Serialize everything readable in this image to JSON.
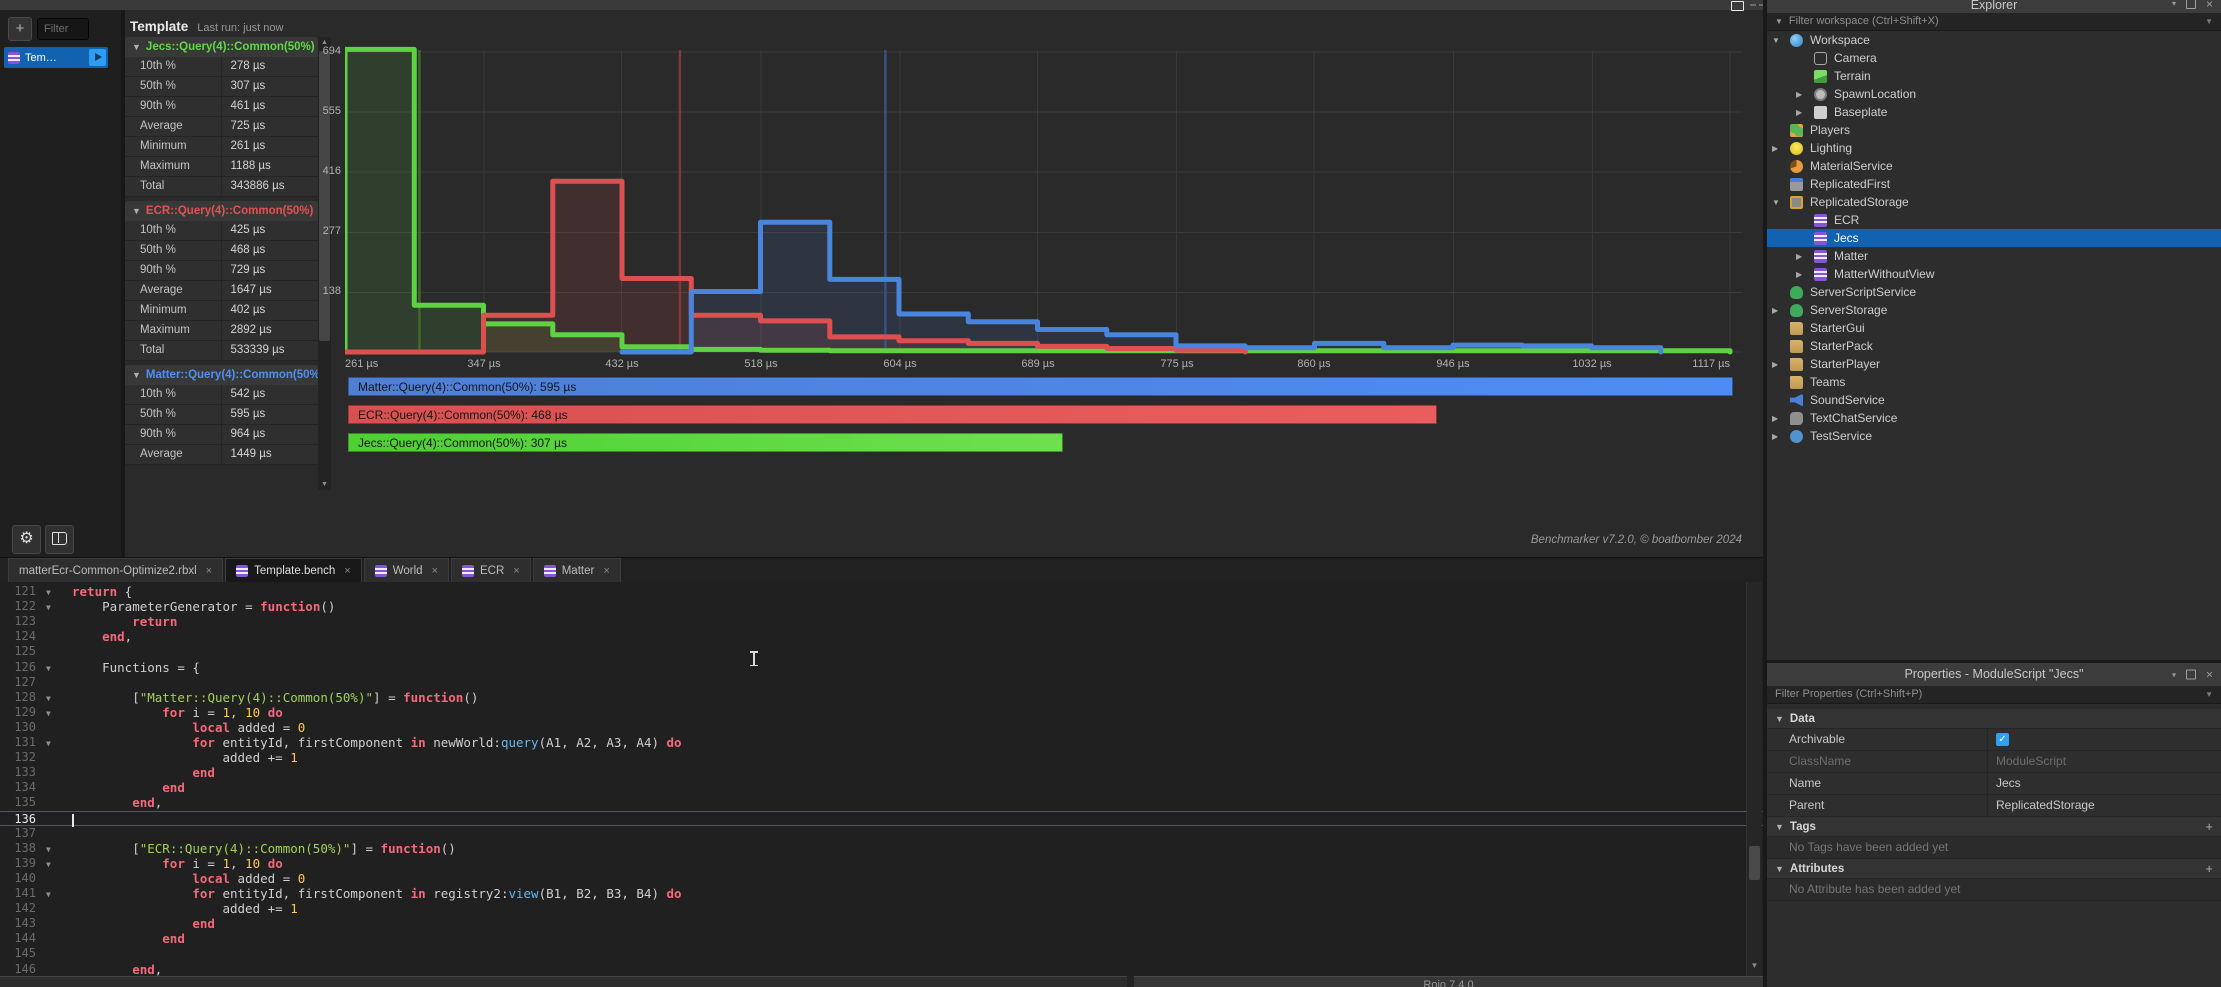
{
  "plugin": {
    "sidebar": {
      "add_button": "+",
      "filter_placeholder": "Filter",
      "selected_item": "Tem…"
    },
    "stats_panel": {
      "title": "Template",
      "last_run": "Last run: just now",
      "row_labels": [
        "10th %",
        "50th %",
        "90th %",
        "Average",
        "Minimum",
        "Maximum",
        "Total"
      ],
      "sections": [
        {
          "name": "Jecs::Query(4)::Common(50%)",
          "color": "#5fd944",
          "rows": [
            [
              "10th %",
              "278 µs"
            ],
            [
              "50th %",
              "307 µs"
            ],
            [
              "90th %",
              "461 µs"
            ],
            [
              "Average",
              "725 µs"
            ],
            [
              "Minimum",
              "261 µs"
            ],
            [
              "Maximum",
              "1188 µs"
            ],
            [
              "Total",
              "343886 µs"
            ]
          ]
        },
        {
          "name": "ECR::Query(4)::Common(50%)",
          "color": "#e45151",
          "rows": [
            [
              "10th %",
              "425 µs"
            ],
            [
              "50th %",
              "468 µs"
            ],
            [
              "90th %",
              "729 µs"
            ],
            [
              "Average",
              "1647 µs"
            ],
            [
              "Minimum",
              "402 µs"
            ],
            [
              "Maximum",
              "2892 µs"
            ],
            [
              "Total",
              "533339 µs"
            ]
          ]
        },
        {
          "name": "Matter::Query(4)::Common(50%)",
          "color": "#4f8ff7",
          "rows": [
            [
              "10th %",
              "542 µs"
            ],
            [
              "50th %",
              "595 µs"
            ],
            [
              "90th %",
              "964 µs"
            ],
            [
              "Average",
              "1449 µs"
            ]
          ]
        }
      ]
    },
    "footer_version": "Benchmarker v7.2.0, © boatbomber 2024"
  },
  "chart_data": {
    "type": "step-histogram",
    "x_unit": "µs",
    "x_start": 261,
    "x_end": 1117,
    "bin_width_us": 42.8,
    "x_ticks": [
      261,
      347,
      432,
      518,
      604,
      689,
      775,
      860,
      946,
      1032,
      1117
    ],
    "x_tick_labels": [
      "261 µs",
      "347 µs",
      "432 µs",
      "518 µs",
      "604 µs",
      "689 µs",
      "775 µs",
      "860 µs",
      "946 µs",
      "1032 µs",
      "1117 µs"
    ],
    "y_ticks": [
      138,
      277,
      416,
      555,
      694
    ],
    "ylim": [
      0,
      740
    ],
    "grid": true,
    "series": [
      {
        "name": "Jecs::Query(4)::Common(50%)",
        "color": "#5fd243",
        "median_color": "#3f6b28",
        "median_us": 307,
        "start_us": 261,
        "values": [
          700,
          108,
          65,
          40,
          12,
          6,
          4,
          3,
          3,
          3,
          3,
          3,
          3,
          3,
          3,
          3,
          3,
          3,
          3,
          3
        ]
      },
      {
        "name": "ECR::Query(4)::Common(50%)",
        "color": "#dd5050",
        "median_color": "#7c3a3a",
        "median_us": 468,
        "start_us": 261,
        "values": [
          0,
          0,
          85,
          395,
          170,
          85,
          72,
          35,
          26,
          20,
          13,
          8,
          4
        ]
      },
      {
        "name": "Matter::Query(4)::Common(50%)",
        "color": "#4a85dd",
        "median_color": "#36537f",
        "median_us": 595,
        "start_us": 432.2,
        "values": [
          0,
          140,
          300,
          168,
          88,
          70,
          52,
          40,
          14,
          10,
          20,
          10,
          16,
          14,
          10
        ]
      }
    ],
    "legend": [
      {
        "label": "Matter::Query(4)::Common(50%): 595 µs",
        "value_us": 595,
        "color1": "#4f7fd4",
        "color2": "#4e8cf5"
      },
      {
        "label": "ECR::Query(4)::Common(50%): 468 µs",
        "value_us": 468,
        "color1": "#d95050",
        "color2": "#ea5d5d"
      },
      {
        "label": "Jecs::Query(4)::Common(50%): 307 µs",
        "value_us": 307,
        "color1": "#4ecf33",
        "color2": "#6ee04e"
      }
    ],
    "legend_position": "bottom"
  },
  "tabs": [
    {
      "label": "matterEcr-Common-Optimize2.rbxl",
      "icon": false,
      "active": false,
      "close": "×"
    },
    {
      "label": "Template.bench",
      "icon": true,
      "active": true,
      "close": "×"
    },
    {
      "label": "World",
      "icon": true,
      "active": false,
      "close": "×"
    },
    {
      "label": "ECR",
      "icon": true,
      "active": false,
      "close": "×"
    },
    {
      "label": "Matter",
      "icon": true,
      "active": false,
      "close": "×"
    }
  ],
  "editor": {
    "current_line": 136,
    "lines": [
      {
        "n": 121,
        "fold": true,
        "tokens": [
          [
            "return",
            "k"
          ],
          [
            " {",
            "p"
          ]
        ]
      },
      {
        "n": 122,
        "fold": true,
        "tokens": [
          [
            "    ParameterGenerator = ",
            "p"
          ],
          [
            "function",
            "k"
          ],
          [
            "()",
            "p"
          ]
        ]
      },
      {
        "n": 123,
        "fold": false,
        "tokens": [
          [
            "        ",
            "p"
          ],
          [
            "return",
            "k"
          ]
        ]
      },
      {
        "n": 124,
        "fold": false,
        "tokens": [
          [
            "    ",
            "p"
          ],
          [
            "end",
            "k"
          ],
          [
            ",",
            "p"
          ]
        ]
      },
      {
        "n": 125,
        "fold": false,
        "tokens": []
      },
      {
        "n": 126,
        "fold": true,
        "tokens": [
          [
            "    Functions = {",
            "p"
          ]
        ]
      },
      {
        "n": 127,
        "fold": false,
        "tokens": []
      },
      {
        "n": 128,
        "fold": true,
        "tokens": [
          [
            "        [",
            "p"
          ],
          [
            "\"Matter::Query(4)::Common(50%)\"",
            "s"
          ],
          [
            "] = ",
            "p"
          ],
          [
            "function",
            "k"
          ],
          [
            "()",
            "p"
          ]
        ]
      },
      {
        "n": 129,
        "fold": true,
        "tokens": [
          [
            "            ",
            "p"
          ],
          [
            "for",
            "k"
          ],
          [
            " i = ",
            "p"
          ],
          [
            "1",
            "n"
          ],
          [
            ", ",
            "p"
          ],
          [
            "10",
            "n"
          ],
          [
            " ",
            "p"
          ],
          [
            "do",
            "k"
          ]
        ]
      },
      {
        "n": 130,
        "fold": false,
        "tokens": [
          [
            "                ",
            "p"
          ],
          [
            "local",
            "k"
          ],
          [
            " added = ",
            "p"
          ],
          [
            "0",
            "n"
          ]
        ]
      },
      {
        "n": 131,
        "fold": true,
        "tokens": [
          [
            "                ",
            "p"
          ],
          [
            "for",
            "k"
          ],
          [
            " entityId, firstComponent ",
            "p"
          ],
          [
            "in",
            "k"
          ],
          [
            " newWorld:",
            "p"
          ],
          [
            "query",
            "m"
          ],
          [
            "(A1, A2, A3, A4) ",
            "p"
          ],
          [
            "do",
            "k"
          ]
        ]
      },
      {
        "n": 132,
        "fold": false,
        "tokens": [
          [
            "                    added += ",
            "p"
          ],
          [
            "1",
            "n"
          ]
        ]
      },
      {
        "n": 133,
        "fold": false,
        "tokens": [
          [
            "                ",
            "p"
          ],
          [
            "end",
            "k"
          ]
        ]
      },
      {
        "n": 134,
        "fold": false,
        "tokens": [
          [
            "            ",
            "p"
          ],
          [
            "end",
            "k"
          ]
        ]
      },
      {
        "n": 135,
        "fold": false,
        "tokens": [
          [
            "        ",
            "p"
          ],
          [
            "end",
            "k"
          ],
          [
            ",",
            "p"
          ]
        ]
      },
      {
        "n": 136,
        "fold": false,
        "cursor": true,
        "tokens": []
      },
      {
        "n": 137,
        "fold": false,
        "tokens": []
      },
      {
        "n": 138,
        "fold": true,
        "tokens": [
          [
            "        [",
            "p"
          ],
          [
            "\"ECR::Query(4)::Common(50%)\"",
            "s"
          ],
          [
            "] = ",
            "p"
          ],
          [
            "function",
            "k"
          ],
          [
            "()",
            "p"
          ]
        ]
      },
      {
        "n": 139,
        "fold": true,
        "tokens": [
          [
            "            ",
            "p"
          ],
          [
            "for",
            "k"
          ],
          [
            " i = ",
            "p"
          ],
          [
            "1",
            "n"
          ],
          [
            ", ",
            "p"
          ],
          [
            "10",
            "n"
          ],
          [
            " ",
            "p"
          ],
          [
            "do",
            "k"
          ]
        ]
      },
      {
        "n": 140,
        "fold": false,
        "tokens": [
          [
            "                ",
            "p"
          ],
          [
            "local",
            "k"
          ],
          [
            " added = ",
            "p"
          ],
          [
            "0",
            "n"
          ]
        ]
      },
      {
        "n": 141,
        "fold": true,
        "tokens": [
          [
            "                ",
            "p"
          ],
          [
            "for",
            "k"
          ],
          [
            " entityId, firstComponent ",
            "p"
          ],
          [
            "in",
            "k"
          ],
          [
            " registry2:",
            "p"
          ],
          [
            "view",
            "m"
          ],
          [
            "(B1, B2, B3, B4) ",
            "p"
          ],
          [
            "do",
            "k"
          ]
        ]
      },
      {
        "n": 142,
        "fold": false,
        "tokens": [
          [
            "                    added += ",
            "p"
          ],
          [
            "1",
            "n"
          ]
        ]
      },
      {
        "n": 143,
        "fold": false,
        "tokens": [
          [
            "                ",
            "p"
          ],
          [
            "end",
            "k"
          ]
        ]
      },
      {
        "n": 144,
        "fold": false,
        "tokens": [
          [
            "            ",
            "p"
          ],
          [
            "end",
            "k"
          ]
        ]
      },
      {
        "n": 145,
        "fold": false,
        "tokens": []
      },
      {
        "n": 146,
        "fold": false,
        "tokens": [
          [
            "        ",
            "p"
          ],
          [
            "end",
            "k"
          ],
          [
            ",",
            "p"
          ]
        ]
      }
    ]
  },
  "explorer": {
    "title": "Explorer",
    "filter_placeholder": "Filter workspace (Ctrl+Shift+X)",
    "items": [
      {
        "label": "Workspace",
        "depth": 0,
        "arrow": "down",
        "icon": "workspace"
      },
      {
        "label": "Camera",
        "depth": 1,
        "arrow": null,
        "icon": "camera"
      },
      {
        "label": "Terrain",
        "depth": 1,
        "arrow": null,
        "icon": "terrain"
      },
      {
        "label": "SpawnLocation",
        "depth": 1,
        "arrow": "right",
        "icon": "spawnlocation"
      },
      {
        "label": "Baseplate",
        "depth": 1,
        "arrow": "right",
        "icon": "baseplate"
      },
      {
        "label": "Players",
        "depth": 0,
        "arrow": null,
        "icon": "players"
      },
      {
        "label": "Lighting",
        "depth": 0,
        "arrow": "right",
        "icon": "lighting"
      },
      {
        "label": "MaterialService",
        "depth": 0,
        "arrow": null,
        "icon": "material"
      },
      {
        "label": "ReplicatedFirst",
        "depth": 0,
        "arrow": null,
        "icon": "repfirst"
      },
      {
        "label": "ReplicatedStorage",
        "depth": 0,
        "arrow": "down",
        "icon": "repstorage"
      },
      {
        "label": "ECR",
        "depth": 1,
        "arrow": null,
        "icon": "module"
      },
      {
        "label": "Jecs",
        "depth": 1,
        "arrow": null,
        "icon": "module",
        "selected": true
      },
      {
        "label": "Matter",
        "depth": 1,
        "arrow": "right",
        "icon": "module"
      },
      {
        "label": "MatterWithoutView",
        "depth": 1,
        "arrow": "right",
        "icon": "module"
      },
      {
        "label": "ServerScriptService",
        "depth": 0,
        "arrow": null,
        "icon": "cloud"
      },
      {
        "label": "ServerStorage",
        "depth": 0,
        "arrow": "right",
        "icon": "cloud"
      },
      {
        "label": "StarterGui",
        "depth": 0,
        "arrow": null,
        "icon": "folder"
      },
      {
        "label": "StarterPack",
        "depth": 0,
        "arrow": null,
        "icon": "folder"
      },
      {
        "label": "StarterPlayer",
        "depth": 0,
        "arrow": "right",
        "icon": "folder"
      },
      {
        "label": "Teams",
        "depth": 0,
        "arrow": null,
        "icon": "folder"
      },
      {
        "label": "SoundService",
        "depth": 0,
        "arrow": null,
        "icon": "sound"
      },
      {
        "label": "TextChatService",
        "depth": 0,
        "arrow": "right",
        "icon": "chat"
      },
      {
        "label": "TestService",
        "depth": 0,
        "arrow": "right",
        "icon": "test"
      }
    ]
  },
  "properties": {
    "title": "Properties - ModuleScript \"Jecs\"",
    "filter_placeholder": "Filter Properties (Ctrl+Shift+P)",
    "sections": [
      {
        "name": "Data",
        "rows": [
          {
            "label": "Archivable",
            "type": "checkbox",
            "checked": true
          },
          {
            "label": "ClassName",
            "value": "ModuleScript",
            "disabled": true
          },
          {
            "label": "Name",
            "value": "Jecs"
          },
          {
            "label": "Parent",
            "value": "ReplicatedStorage"
          }
        ]
      },
      {
        "name": "Tags",
        "add_button": "+",
        "empty_text": "No Tags have been added yet"
      },
      {
        "name": "Attributes",
        "add_button": "+",
        "empty_text": "No Attribute has been added yet"
      }
    ]
  },
  "bottom": {
    "rojo_label": "Rojo 7.4.0"
  }
}
